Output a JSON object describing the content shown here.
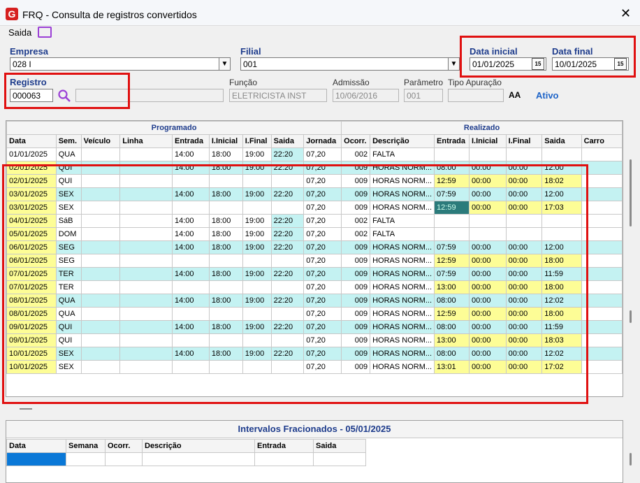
{
  "window": {
    "title": "FRQ - Consulta de registros convertidos",
    "logo_letter": "G"
  },
  "menu": {
    "saida_label": "Saida"
  },
  "form": {
    "empresa_label": "Empresa",
    "empresa_value": "028 I",
    "filial_label": "Filial",
    "filial_value": "001",
    "data_inicial_label": "Data inicial",
    "data_inicial_value": "01/01/2025",
    "data_final_label": "Data final",
    "data_final_value": "10/01/2025",
    "registro_label": "Registro",
    "registro_value": "000063",
    "registro_name_value": "",
    "funcao_label": "Função",
    "funcao_value": "ELETRICISTA INST",
    "admissao_label": "Admissão",
    "admissao_value": "10/06/2016",
    "parametro_label": "Parâmetro",
    "parametro_value": "001",
    "tipo_apuracao_label": "Tipo Apuração",
    "tipo_apuracao_value": "",
    "font_icon_label": "AA",
    "status": "Ativo",
    "calendar_icon_label": "15"
  },
  "grid": {
    "group_programado": "Programado",
    "group_realizado": "Realizado",
    "headers": [
      "Data",
      "Sem.",
      "Veículo",
      "Linha",
      "Entrada",
      "I.Inicial",
      "I.Final",
      "Saida",
      "Jornada",
      "Ocorr.",
      "Descrição",
      "Entrada",
      "I.Inicial",
      "I.Final",
      "Saida",
      "Carro"
    ],
    "rows": [
      [
        "01/01/2025",
        "QUA",
        "",
        "",
        "14:00",
        "18:00",
        "19:00",
        "22:20",
        "07,20",
        "002",
        "FALTA",
        "",
        "",
        "",
        "",
        ""
      ],
      [
        "02/01/2025",
        "QUI",
        "",
        "",
        "14:00",
        "18:00",
        "19:00",
        "22:20",
        "07,20",
        "009",
        "HORAS NORM...",
        "08:00",
        "00:00",
        "00:00",
        "12:00",
        ""
      ],
      [
        "02/01/2025",
        "QUI",
        "",
        "",
        "",
        "",
        "",
        "",
        "07,20",
        "009",
        "HORAS NORM...",
        "12:59",
        "00:00",
        "00:00",
        "18:02",
        ""
      ],
      [
        "03/01/2025",
        "SEX",
        "",
        "",
        "14:00",
        "18:00",
        "19:00",
        "22:20",
        "07,20",
        "009",
        "HORAS NORM...",
        "07:59",
        "00:00",
        "00:00",
        "12:00",
        ""
      ],
      [
        "03/01/2025",
        "SEX",
        "",
        "",
        "",
        "",
        "",
        "",
        "07,20",
        "009",
        "HORAS NORM...",
        "12:59",
        "00:00",
        "00:00",
        "17:03",
        ""
      ],
      [
        "04/01/2025",
        "SáB",
        "",
        "",
        "14:00",
        "18:00",
        "19:00",
        "22:20",
        "07,20",
        "002",
        "FALTA",
        "",
        "",
        "",
        "",
        ""
      ],
      [
        "05/01/2025",
        "DOM",
        "",
        "",
        "14:00",
        "18:00",
        "19:00",
        "22:20",
        "07,20",
        "002",
        "FALTA",
        "",
        "",
        "",
        "",
        ""
      ],
      [
        "06/01/2025",
        "SEG",
        "",
        "",
        "14:00",
        "18:00",
        "19:00",
        "22:20",
        "07,20",
        "009",
        "HORAS NORM...",
        "07:59",
        "00:00",
        "00:00",
        "12:00",
        ""
      ],
      [
        "06/01/2025",
        "SEG",
        "",
        "",
        "",
        "",
        "",
        "",
        "07,20",
        "009",
        "HORAS NORM...",
        "12:59",
        "00:00",
        "00:00",
        "18:00",
        ""
      ],
      [
        "07/01/2025",
        "TER",
        "",
        "",
        "14:00",
        "18:00",
        "19:00",
        "22:20",
        "07,20",
        "009",
        "HORAS NORM...",
        "07:59",
        "00:00",
        "00:00",
        "11:59",
        ""
      ],
      [
        "07/01/2025",
        "TER",
        "",
        "",
        "",
        "",
        "",
        "",
        "07,20",
        "009",
        "HORAS NORM...",
        "13:00",
        "00:00",
        "00:00",
        "18:00",
        ""
      ],
      [
        "08/01/2025",
        "QUA",
        "",
        "",
        "14:00",
        "18:00",
        "19:00",
        "22:20",
        "07,20",
        "009",
        "HORAS NORM...",
        "08:00",
        "00:00",
        "00:00",
        "12:02",
        ""
      ],
      [
        "08/01/2025",
        "QUA",
        "",
        "",
        "",
        "",
        "",
        "",
        "07,20",
        "009",
        "HORAS NORM...",
        "12:59",
        "00:00",
        "00:00",
        "18:00",
        ""
      ],
      [
        "09/01/2025",
        "QUI",
        "",
        "",
        "14:00",
        "18:00",
        "19:00",
        "22:20",
        "07,20",
        "009",
        "HORAS NORM...",
        "08:00",
        "00:00",
        "00:00",
        "11:59",
        ""
      ],
      [
        "09/01/2025",
        "QUI",
        "",
        "",
        "",
        "",
        "",
        "",
        "07,20",
        "009",
        "HORAS NORM...",
        "13:00",
        "00:00",
        "00:00",
        "18:03",
        ""
      ],
      [
        "10/01/2025",
        "SEX",
        "",
        "",
        "14:00",
        "18:00",
        "19:00",
        "22:20",
        "07,20",
        "009",
        "HORAS NORM...",
        "08:00",
        "00:00",
        "00:00",
        "12:02",
        ""
      ],
      [
        "10/01/2025",
        "SEX",
        "",
        "",
        "",
        "",
        "",
        "",
        "07,20",
        "009",
        "HORAS NORM...",
        "13:01",
        "00:00",
        "00:00",
        "17:02",
        ""
      ]
    ]
  },
  "intervals": {
    "title": "Intervalos Fracionados - 05/01/2025",
    "headers": [
      "Data",
      "Semana",
      "Ocorr.",
      "Descrição",
      "Entrada",
      "Saida"
    ]
  },
  "colors": {
    "label_blue": "#1e3c8c",
    "highlight_red": "#e01010",
    "row_cyan": "#c4f2f2",
    "cell_yellow": "#fdfd96",
    "selected_teal": "#2b7b7b",
    "status_blue": "#1e64c8",
    "search_purple": "#9b3fd6"
  }
}
